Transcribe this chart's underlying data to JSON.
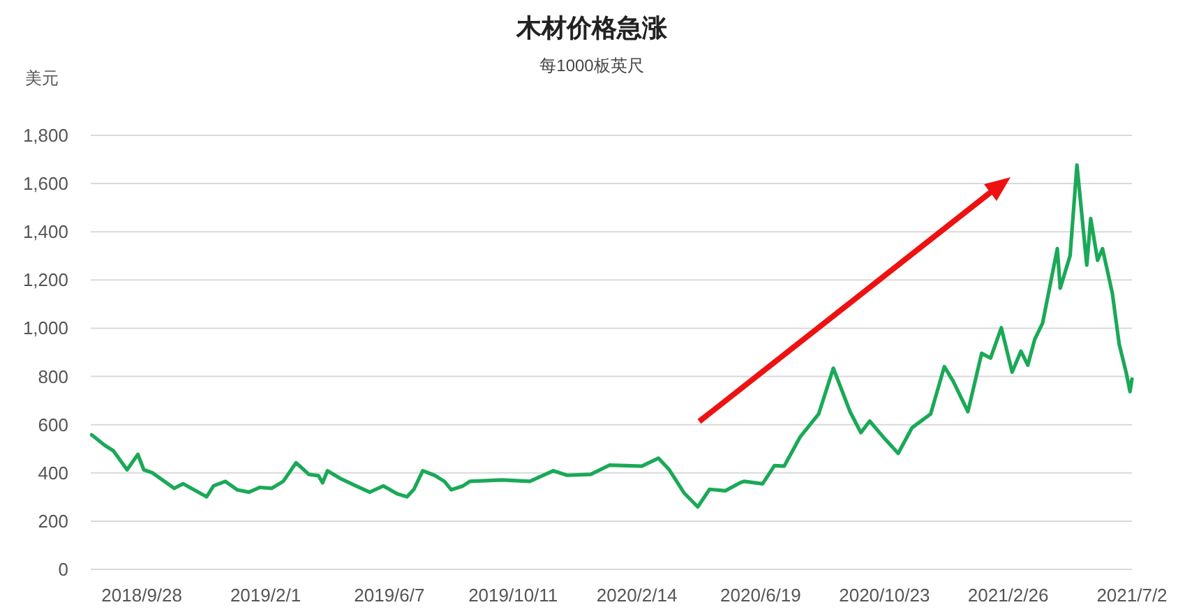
{
  "chart_data": {
    "type": "line",
    "title": "木材价格急涨",
    "subtitle": "每1000板英尺",
    "ylabel": "美元",
    "x": [
      "2018-08-08",
      "2018-08-21",
      "2018-08-30",
      "2018-09-13",
      "2018-09-24",
      "2018-09-30",
      "2018-10-09",
      "2018-10-31",
      "2018-11-09",
      "2018-12-03",
      "2018-12-10",
      "2018-12-22",
      "2019-01-03",
      "2019-01-15",
      "2019-01-26",
      "2019-02-07",
      "2019-02-19",
      "2019-03-04",
      "2019-03-12",
      "2019-03-17",
      "2019-03-27",
      "2019-03-31",
      "2019-04-05",
      "2019-04-19",
      "2019-05-04",
      "2019-05-18",
      "2019-06-01",
      "2019-06-15",
      "2019-06-25",
      "2019-07-02",
      "2019-07-11",
      "2019-07-23",
      "2019-08-02",
      "2019-08-09",
      "2019-08-21",
      "2019-08-28",
      "2019-09-30",
      "2019-10-28",
      "2019-11-21",
      "2019-12-05",
      "2019-12-29",
      "2020-01-17",
      "2020-02-19",
      "2020-03-07",
      "2020-03-18",
      "2020-04-02",
      "2020-04-16",
      "2020-04-28",
      "2020-05-14",
      "2020-05-29",
      "2020-06-02",
      "2020-06-21",
      "2020-07-03",
      "2020-07-13",
      "2020-07-29",
      "2020-08-17",
      "2020-09-01",
      "2020-09-18",
      "2020-09-29",
      "2020-10-08",
      "2020-10-22",
      "2020-11-06",
      "2020-11-20",
      "2020-12-09",
      "2020-12-23",
      "2021-01-01",
      "2021-01-16",
      "2021-01-30",
      "2021-02-08",
      "2021-02-19",
      "2021-03-02",
      "2021-03-11",
      "2021-03-18",
      "2021-03-25",
      "2021-04-02",
      "2021-04-17",
      "2021-04-20",
      "2021-04-30",
      "2021-05-07",
      "2021-05-17",
      "2021-05-21",
      "2021-05-28",
      "2021-06-02",
      "2021-06-12",
      "2021-06-19",
      "2021-06-26",
      "2021-06-30",
      "2021-07-02"
    ],
    "series": [
      {
        "color": "#1aa957",
        "values": [
          558,
          515,
          492,
          413,
          477,
          413,
          400,
          336,
          355,
          301,
          346,
          365,
          330,
          320,
          340,
          336,
          365,
          442,
          413,
          394,
          388,
          359,
          409,
          375,
          346,
          320,
          346,
          313,
          301,
          332,
          409,
          390,
          365,
          330,
          346,
          365,
          371,
          365,
          409,
          390,
          394,
          432,
          428,
          461,
          413,
          317,
          259,
          332,
          326,
          359,
          365,
          355,
          430,
          428,
          548,
          644,
          834,
          654,
          567,
          615,
          548,
          481,
          587,
          644,
          841,
          780,
          654,
          896,
          876,
          1002,
          818,
          905,
          847,
          954,
          1021,
          1330,
          1166,
          1301,
          1677,
          1262,
          1455,
          1282,
          1330,
          1146,
          934,
          818,
          737,
          789
        ]
      }
    ],
    "xlim": [
      "2018-08-07",
      "2021-07-02"
    ],
    "xticks": [
      {
        "value": "2018-09-28",
        "label": "2018/9/28"
      },
      {
        "value": "2019-02-01",
        "label": "2019/2/1"
      },
      {
        "value": "2019-06-07",
        "label": "2019/6/7"
      },
      {
        "value": "2019-10-11",
        "label": "2019/10/11"
      },
      {
        "value": "2020-02-14",
        "label": "2020/2/14"
      },
      {
        "value": "2020-06-19",
        "label": "2020/6/19"
      },
      {
        "value": "2020-10-23",
        "label": "2020/10/23"
      },
      {
        "value": "2021-02-26",
        "label": "2021/2/26"
      },
      {
        "value": "2021-07-02",
        "label": "2021/7/2"
      }
    ],
    "ylim": [
      0,
      1800
    ],
    "yticks": [
      0,
      200,
      400,
      600,
      800,
      {
        "value": 1000,
        "label": "1,000"
      },
      {
        "value": 1200,
        "label": "1,200"
      },
      {
        "value": 1400,
        "label": "1,400"
      },
      {
        "value": 1600,
        "label": "1,600"
      },
      {
        "value": 1800,
        "label": "1,800"
      }
    ],
    "grid": "y",
    "line_style": "solid"
  }
}
